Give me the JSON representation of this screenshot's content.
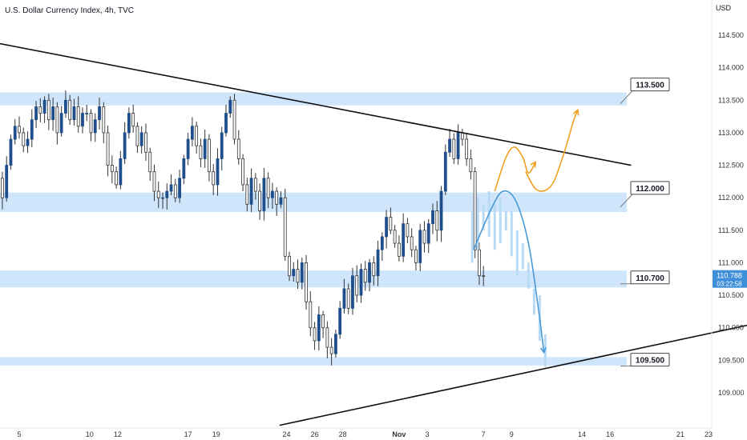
{
  "header": {
    "title": "U.S. Dollar Currency Index, 4h, TVC",
    "currency": "USD"
  },
  "colors": {
    "bull": "#1f4e8c",
    "bear": "#ffffff",
    "wick": "#333333",
    "zone": "#cfe5fb",
    "trendline": "#111111",
    "orange_path": "#f0a020",
    "blue_path": "#4a9ad6",
    "ghost": "#b9daf5",
    "price_tag": "#3f8fd8"
  },
  "current_price": {
    "value": "110.788",
    "countdown": "03:22:58"
  },
  "chart_data": {
    "type": "candlestick",
    "title": "U.S. Dollar Currency Index, 4h, TVC",
    "y_axis": {
      "unit": "USD",
      "range": [
        108.7,
        115.2
      ],
      "ticks": [
        "114.500",
        "114.000",
        "113.500",
        "113.000",
        "112.500",
        "112.000",
        "111.500",
        "111.000",
        "110.500",
        "110.000",
        "109.500",
        "109.000"
      ]
    },
    "x_axis": {
      "ticks": [
        "5",
        "10",
        "12",
        "17",
        "19",
        "24",
        "26",
        "28",
        "Nov",
        "3",
        "7",
        "9",
        "14",
        "16",
        "21",
        "23"
      ],
      "tick_days": [
        5,
        10,
        12,
        17,
        19,
        24,
        26,
        28,
        32,
        34,
        38,
        40,
        45,
        47,
        52,
        54
      ]
    },
    "zones": [
      {
        "label": "113.500",
        "low": 113.42,
        "high": 113.62
      },
      {
        "label": "112.000",
        "low": 111.78,
        "high": 112.08
      },
      {
        "label": "110.700",
        "low": 110.62,
        "high": 110.88
      },
      {
        "label": "109.500",
        "low": 109.42,
        "high": 109.55
      }
    ],
    "trendlines": [
      {
        "name": "resistance",
        "from": {
          "day": 0.5,
          "price": 114.5
        },
        "to": {
          "day": 48.5,
          "price": 112.5
        }
      },
      {
        "name": "support",
        "from": {
          "day": 23.5,
          "price": 108.5
        },
        "to": {
          "day": 57.0,
          "price": 110.05
        }
      }
    ],
    "closes": [
      111.3,
      111.1,
      110.7,
      110.3,
      110.1,
      110.4,
      110.9,
      111.6,
      111.0,
      111.3,
      111.8,
      112.3,
      112.0,
      112.5,
      112.9,
      113.1,
      113.0,
      112.8,
      112.9,
      113.2,
      113.4,
      113.3,
      113.5,
      113.2,
      113.4,
      113.0,
      113.3,
      113.5,
      113.2,
      113.4,
      113.1,
      113.3,
      113.3,
      113.0,
      113.2,
      113.4,
      113.0,
      112.5,
      112.4,
      112.2,
      112.6,
      113.0,
      113.3,
      113.1,
      112.8,
      113.0,
      112.7,
      112.4,
      112.1,
      112.0,
      112.0,
      112.1,
      112.2,
      112.0,
      112.3,
      112.6,
      112.9,
      113.1,
      112.8,
      112.6,
      112.9,
      112.4,
      112.2,
      112.6,
      113.0,
      113.3,
      113.5,
      112.9,
      112.6,
      112.2,
      111.9,
      112.3,
      112.1,
      111.8,
      112.3,
      112.0,
      112.1,
      111.9,
      112.0,
      111.1,
      110.8,
      110.9,
      110.7,
      111.0,
      110.4,
      110.0,
      109.8,
      110.2,
      110.0,
      109.7,
      109.6,
      109.9,
      110.3,
      110.6,
      110.3,
      110.8,
      110.5,
      110.9,
      110.7,
      111.0,
      110.8,
      111.2,
      111.4,
      111.7,
      111.5,
      111.3,
      111.1,
      111.6,
      111.4,
      111.2,
      111.0,
      111.5,
      111.3,
      111.6,
      111.8,
      111.5,
      112.1,
      112.7,
      112.9,
      112.6,
      113.0,
      112.9,
      112.6,
      112.4,
      111.2,
      110.8,
      110.79
    ],
    "start_day": 0.2,
    "day_step": 0.3,
    "projection_paths": [
      {
        "name": "orange-breakout",
        "points": [
          [
            38.8,
            112.1
          ],
          [
            39.6,
            112.62
          ],
          [
            40.2,
            112.78
          ],
          [
            40.8,
            112.62
          ],
          [
            41.2,
            112.38
          ],
          [
            41.7,
            112.55
          ]
        ]
      },
      {
        "name": "orange-retest-rally",
        "points": [
          [
            41.0,
            112.4
          ],
          [
            41.8,
            112.12
          ],
          [
            42.8,
            112.18
          ],
          [
            43.6,
            112.6
          ],
          [
            44.4,
            113.18
          ],
          [
            44.7,
            113.35
          ]
        ]
      },
      {
        "name": "blue-drop",
        "points": [
          [
            37.3,
            111.2
          ],
          [
            38.6,
            111.85
          ],
          [
            39.4,
            112.1
          ],
          [
            40.3,
            111.95
          ],
          [
            41.2,
            111.3
          ],
          [
            41.9,
            110.3
          ],
          [
            42.3,
            109.62
          ]
        ]
      }
    ]
  }
}
